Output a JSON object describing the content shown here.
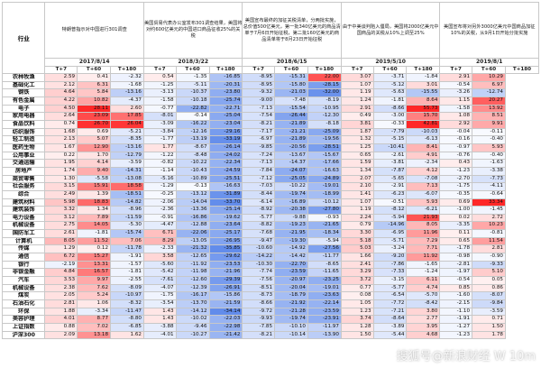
{
  "events": [
    {
      "label": "特朗普指示对中国进行301调查",
      "date": "2017/8/14"
    },
    {
      "label": "美国贸易代表办公室发布301调查结果，美国将对约600亿美元的中国进口商品征收25%的关税",
      "date": "2018/3/22"
    },
    {
      "label": "美国宣布最终的加征关税清单，分两批实施，总价值500亿美元，第一批340亿美元的商品清单于7月6日开始征税，第二批160亿美元的商品清单将于8月23日开始征税",
      "date": "2018/6/15"
    },
    {
      "label": "由于中美谈判陷入僵局，美国将2000亿美元中国商品的关税从10%上调至25%",
      "date": "2019/5/10"
    },
    {
      "label": "美国宣布将对另外3000亿美元中国商品加征10%的关税，从9月1日开始分批实施",
      "date": "2019/8/1"
    }
  ],
  "industry_header": "行业",
  "col_headers": [
    "T+7",
    "T+60",
    "T+180"
  ],
  "rows": [
    [
      "农林牧渔",
      [
        "2.59",
        "0.41",
        "-2.32",
        "0.54",
        "-1.35",
        "-16.85",
        "-8.95",
        "-15.31",
        "22.00",
        "3.07",
        "-3.71",
        "-1.84",
        "2.91",
        "10.29"
      ]
    ],
    [
      "基础化工",
      [
        "2.12",
        "6.31",
        "-1.68",
        "-1.25",
        "-5.11",
        "-20.31",
        "-8.95",
        "-15.80",
        "-28.15",
        "1.07",
        "-5.12",
        "3.01",
        "-0.54",
        "6.97"
      ]
    ],
    [
      "钢铁",
      [
        "4.64",
        "5.84",
        "-13.16",
        "-3.13",
        "-10.37",
        "-23.80",
        "-9.32",
        "-21.03",
        "-32.00",
        "1.19",
        "-5.63",
        "-15.55",
        "-3.26",
        "-12.74"
      ]
    ],
    [
      "有色金属",
      [
        "4.22",
        "10.82",
        "-4.37",
        "-1.58",
        "-10.18",
        "-25.74",
        "-9.00",
        "-7.48",
        "-8.19",
        "1.24",
        "-1.81",
        "8.64",
        "1.15",
        "20.27"
      ]
    ],
    [
      "电子",
      [
        "4.50",
        "28.11",
        "2.60",
        "-0.77",
        "-22.82",
        "-22.71",
        "-7.13",
        "-15.54",
        "-10.95",
        "2.91",
        "-8.66",
        "55.73",
        "-1.58",
        "13.92"
      ]
    ],
    [
      "家用电器",
      [
        "2.64",
        "23.09",
        "17.85",
        "-8.01",
        "-0.14",
        "-25.04",
        "-7.54",
        "-26.44",
        "-12.30",
        "0.49",
        "-3.00",
        "15.70",
        "1.08",
        "8.51"
      ]
    ],
    [
      "食品饮料",
      [
        "0.74",
        "26.70",
        "26.04",
        "-3.09",
        "-16.22",
        "-23.04",
        "-8.21",
        "-21.89",
        "-8.18",
        "3.81",
        "-0.33",
        "42.81",
        "2.92",
        "9.91"
      ]
    ],
    [
      "纺织服饰",
      [
        "1.68",
        "0.69",
        "-5.21",
        "-3.84",
        "-12.16",
        "-29.16",
        "-7.17",
        "-21.21",
        "-25.09",
        "1.87",
        "-7.79",
        "-10.03",
        "-0.04",
        "-0.11"
      ]
    ],
    [
      "轻工制造",
      [
        "2.13",
        "5.07",
        "-8.35",
        "-1.77",
        "-13.19",
        "-33.19",
        "-6.97",
        "-21.89",
        "-19.56",
        "1.32",
        "-5.15",
        "-6.13",
        "-0.16",
        "-0.40"
      ]
    ],
    [
      "医药生物",
      [
        "1.67",
        "12.90",
        "-13.16",
        "1.77",
        "-8.67",
        "-26.14",
        "-9.85",
        "-20.56",
        "-28.51",
        "1.25",
        "-10.41",
        "8.41",
        "-0.97",
        "5.93"
      ]
    ],
    [
      "公用事业",
      [
        "0.22",
        "1.70",
        "-12.79",
        "-1.22",
        "-8.48",
        "-24.02",
        "-7.24",
        "-13.67",
        "-15.67",
        "0.65",
        "-2.61",
        "4.91",
        "-0.76",
        "-0.40"
      ]
    ],
    [
      "交通运输",
      [
        "1.95",
        "4.14",
        "-3.59",
        "-0.82",
        "-10.22",
        "-22.34",
        "-7.13",
        "-14.37",
        "-17.66",
        "1.59",
        "-3.81",
        "-2.34",
        "0.43",
        "-1.63"
      ]
    ],
    [
      "房地产",
      [
        "1.74",
        "9.40",
        "-14.31",
        "-1.14",
        "-10.43",
        "-24.59",
        "-7.84",
        "-24.07",
        "-16.63",
        "1.34",
        "-7.87",
        "4.12",
        "-1.23",
        "-3.38"
      ]
    ],
    [
      "商贸零售",
      [
        "1.30",
        "-5.58",
        "-13.08",
        "-5.16",
        "-10.89",
        "-25.51",
        "-7.12",
        "-25.05",
        "-24.89",
        "2.07",
        "-5.65",
        "-7.08",
        "-2.70",
        "-7.73"
      ]
    ],
    [
      "社会服务",
      [
        "3.15",
        "15.91",
        "18.58",
        "-1.29",
        "-0.13",
        "-16.63",
        "-7.03",
        "-10.22",
        "-19.01",
        "2.10",
        "-2.91",
        "7.13",
        "-1.75",
        "-4.11"
      ]
    ],
    [
      "综合",
      [
        "2.49",
        "1.39",
        "-18.51",
        "-0.25",
        "-13.12",
        "-31.89",
        "-8.44",
        "-19.74",
        "-18.99",
        "1.41",
        "-6.23",
        "-6.07",
        "-0.35",
        "-0.64"
      ]
    ],
    [
      "建筑材料",
      [
        "5.98",
        "18.83",
        "-14.82",
        "-2.06",
        "-14.04",
        "-33.70",
        "-6.14",
        "-16.89",
        "-10.12",
        "1.07",
        "-0.51",
        "5.93",
        "0.69",
        "33.34"
      ]
    ],
    [
      "建筑装饰",
      [
        "3.32",
        "1.34",
        "-8.96",
        "-2.36",
        "-13.36",
        "-25.14",
        "-8.92",
        "-20.38",
        "-27.80",
        "1.19",
        "-8.12",
        "-6.21",
        "-1.00",
        "-1.45"
      ]
    ],
    [
      "电力设备",
      [
        "3.12",
        "7.89",
        "-11.59",
        "-0.91",
        "-16.86",
        "-19.62",
        "-5.77",
        "-9.88",
        "-0.93",
        "2.24",
        "-5.94",
        "21.93",
        "0.02",
        "2.72"
      ]
    ],
    [
      "机械设备",
      [
        "2.75",
        "14.05",
        "-5.30",
        "-4.47",
        "-12.88",
        "-23.64",
        "-8.82",
        "-19.23",
        "-21.65",
        "0.79",
        "-14.96",
        "8.05",
        "-3.35",
        "10.23"
      ]
    ],
    [
      "国防军工",
      [
        "2.61",
        "-1.81",
        "-15.74",
        "6.71",
        "-22.06",
        "-25.17",
        "-7.68",
        "-21.95",
        "-18.34",
        "3.30",
        "-6.95",
        "11.96",
        "0.11",
        "-0.81"
      ]
    ],
    [
      "计算机",
      [
        "8.05",
        "11.52",
        "7.06",
        "8.29",
        "-13.05",
        "-26.95",
        "-9.47",
        "-19.30",
        "-5.94",
        "5.18",
        "-5.71",
        "7.29",
        "0.65",
        "11.54"
      ]
    ],
    [
      "传媒",
      [
        "1.29",
        "0.12",
        "-11.78",
        "-2.33",
        "-21.32",
        "-35.85",
        "-10.60",
        "-14.92",
        "-27.56",
        "5.03",
        "-3.24",
        "7.71",
        "-1.78",
        "2.81"
      ]
    ],
    [
      "通信",
      [
        "6.72",
        "15.27",
        "-1.91",
        "3.58",
        "-12.65",
        "-29.62",
        "-14.22",
        "-14.42",
        "-11.77",
        "1.66",
        "-9.20",
        "11.92",
        "-0.98",
        "-0.90"
      ]
    ],
    [
      "银行",
      [
        "-2.19",
        "13.31",
        "-1.57",
        "-5.60",
        "-11.92",
        "-23.53",
        "-10.30",
        "-22.70",
        "-8.65",
        "2.41",
        "-7.86",
        "-1.65",
        "-2.81",
        "-9.33"
      ]
    ],
    [
      "非银金融",
      [
        "4.84",
        "16.57",
        "-1.81",
        "-5.42",
        "-11.98",
        "-21.96",
        "-7.74",
        "-23.59",
        "-11.65",
        "3.29",
        "-7.33",
        "-1.24",
        "-1.97",
        "5.10"
      ]
    ],
    [
      "汽车",
      [
        "3.53",
        "9.97",
        "-2.55",
        "-7.61",
        "-12.60",
        "-29.39",
        "-7.56",
        "-20.97",
        "-23.25",
        "3.72",
        "-3.15",
        "6.11",
        "-0.54",
        "0.05"
      ]
    ],
    [
      "机械设备",
      [
        "2.38",
        "7.62",
        "-8.09",
        "-4.07",
        "-12.39",
        "-26.91",
        "-8.51",
        "-20.04",
        "-19.01",
        "0.77",
        "-5.77",
        "4.74",
        "0.85",
        "0.86"
      ]
    ],
    [
      "煤炭",
      [
        "2.05",
        "5.24",
        "-10.97",
        "-1.75",
        "-16.17",
        "-15.86",
        "-8.73",
        "-18.79",
        "-23.63",
        "0.08",
        "-6.54",
        "-5.70",
        "-1.60",
        "-8.07"
      ]
    ],
    [
      "石油石化",
      [
        "2.81",
        "1.06",
        "-8.32",
        "-3.54",
        "-13.70",
        "-21.59",
        "-8.66",
        "-21.92",
        "-22.14",
        "1.05",
        "-7.72",
        "-8.42",
        "-2.15",
        "-9.84"
      ]
    ],
    [
      "环保",
      [
        "1.88",
        "-3.34",
        "-11.47",
        "1.43",
        "-14.12",
        "-34.14",
        "-9.72",
        "-21.28",
        "-23.59",
        "1.23",
        "-7.21",
        "3.80",
        "-1.10",
        "-3.59"
      ]
    ],
    [
      "美容护理",
      [
        "4.01",
        "8.77",
        "-8.80",
        "1.43",
        "-10.02",
        "-22.03",
        "-9.93",
        "-19.74",
        "-23.91",
        "3.74",
        "-8.64",
        "2.77",
        "-1.91",
        "0.71"
      ]
    ],
    [
      "上证指数",
      [
        "0.88",
        "7.02",
        "-6.85",
        "-3.88",
        "-9.46",
        "-22.98",
        "-7.85",
        "-10.10",
        "-11.97",
        "1.28",
        "-3.89",
        "3.95",
        "-1.27",
        "1.50"
      ]
    ],
    [
      "沪深300",
      [
        "2.09",
        "13.18",
        "1.62",
        "-4.01",
        "-10.27",
        "-21.42",
        "-8.21",
        "-10.14",
        "-13.90",
        "1.50",
        "-5.44",
        "4.68",
        "-1.23",
        "1.78"
      ]
    ]
  ],
  "watermark": "搜狐号@新浪财经 W 10m"
}
